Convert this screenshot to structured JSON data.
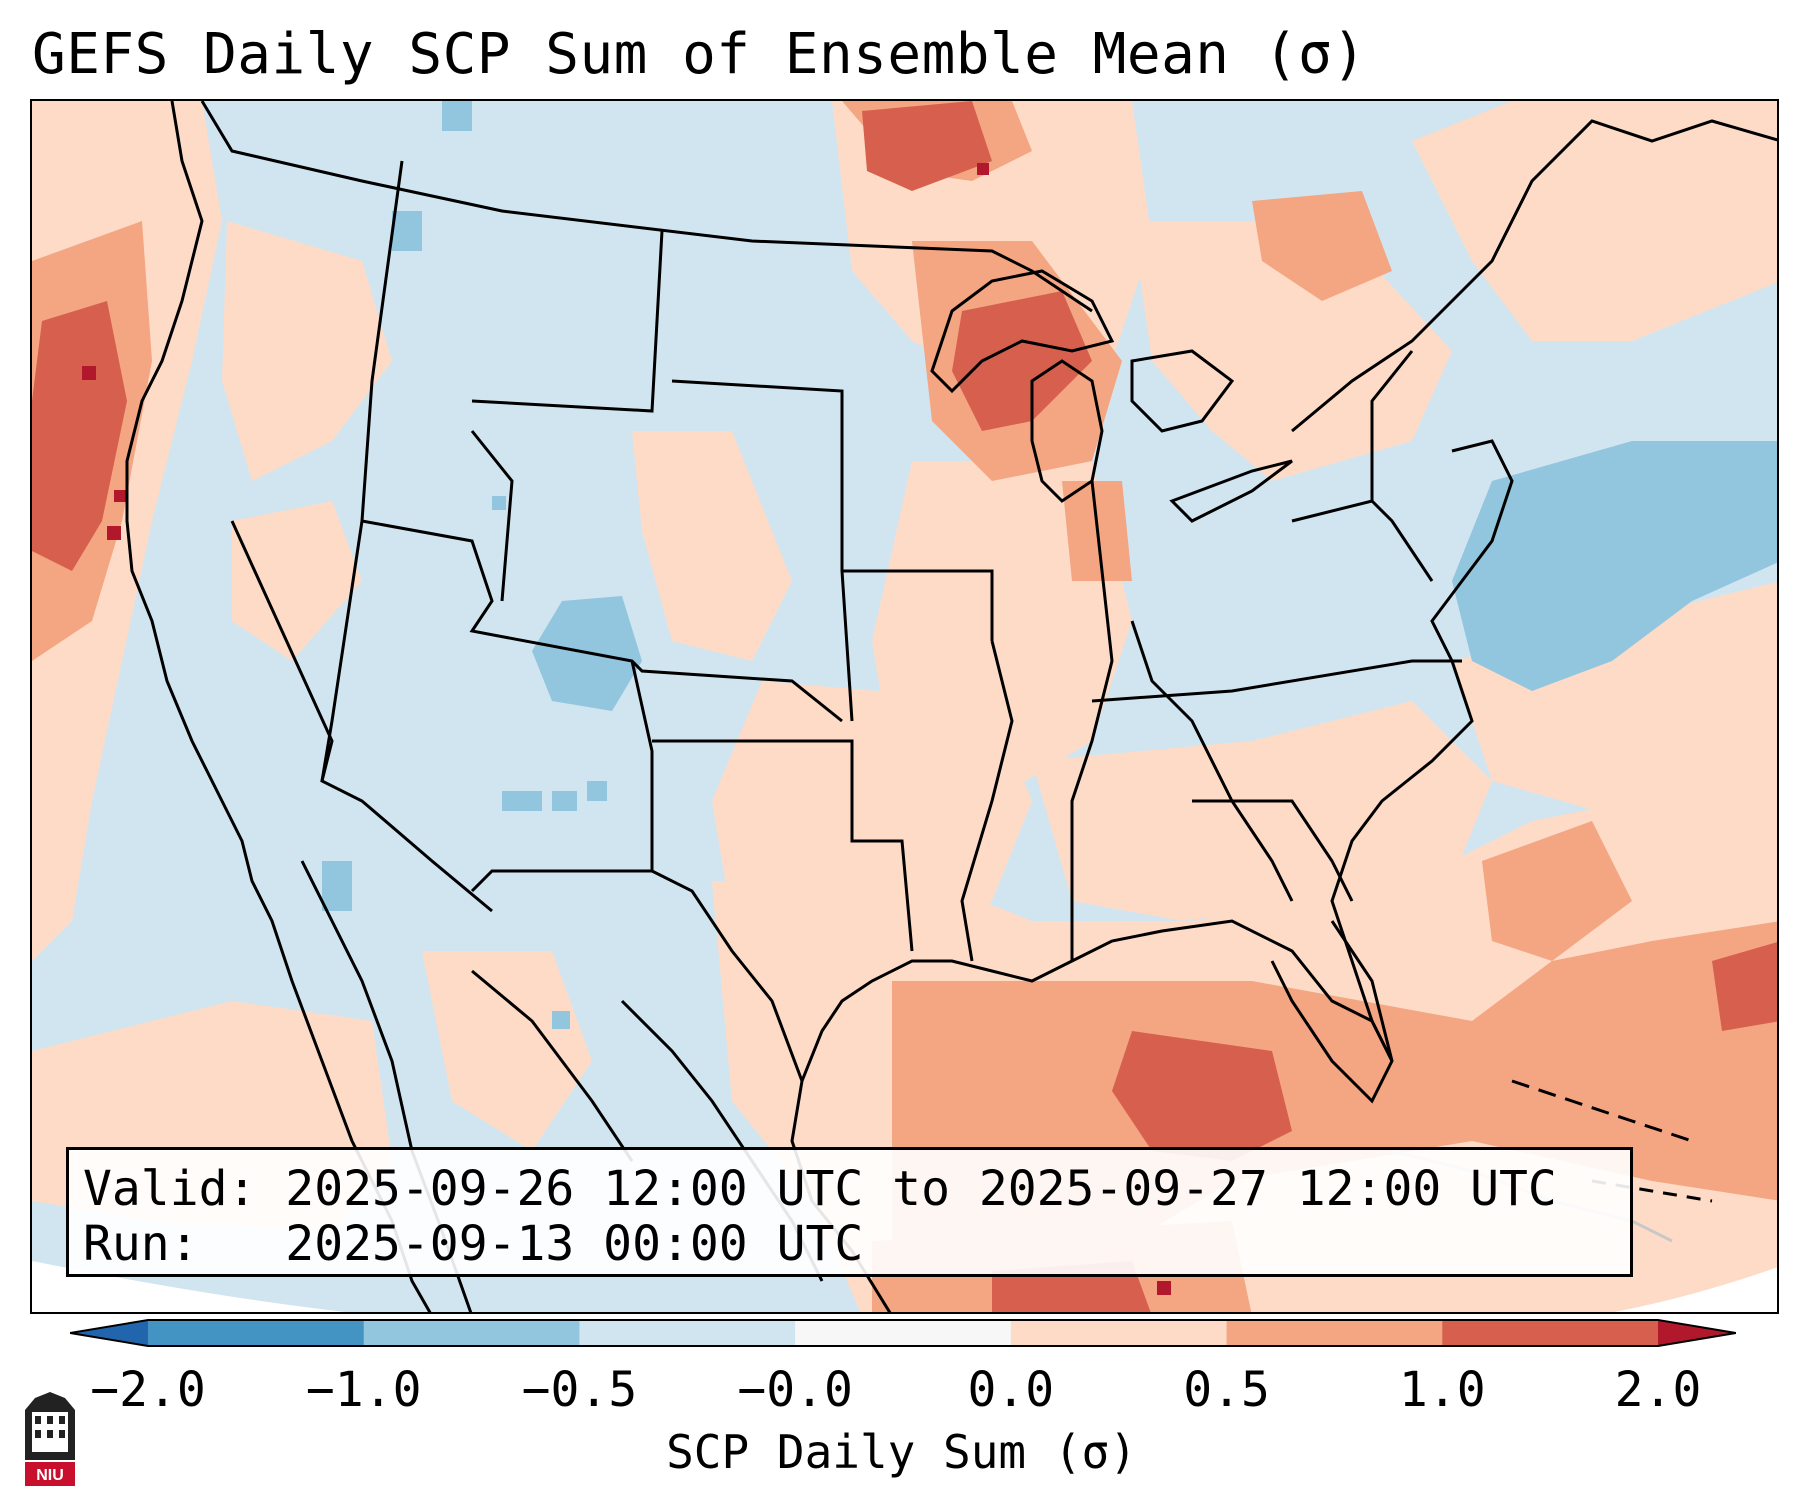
{
  "title": "GEFS Daily SCP Sum of Ensemble Mean (σ)",
  "info": {
    "valid_label": "Valid:",
    "valid_value": "2025-09-26 12:00 UTC to 2025-09-27 12:00 UTC",
    "run_label": "Run:",
    "run_value": "2025-09-13 00:00 UTC"
  },
  "colorbar": {
    "label": "SCP Daily Sum (σ)",
    "ticks": [
      "−2.0",
      "−1.0",
      "−0.5",
      "−0.0",
      "0.0",
      "0.5",
      "1.0",
      "2.0"
    ],
    "bins": [
      {
        "range": "< -2.0",
        "color": "#2166ac"
      },
      {
        "range": "-2.0 to -1.0",
        "color": "#4393c3"
      },
      {
        "range": "-1.0 to -0.5",
        "color": "#92c5de"
      },
      {
        "range": "-0.5 to -0.0",
        "color": "#d1e5f0"
      },
      {
        "range": "-0.0 to 0.0",
        "color": "#f7f7f7"
      },
      {
        "range": "0.0 to 0.5",
        "color": "#fddbc7"
      },
      {
        "range": "0.5 to 1.0",
        "color": "#f4a582"
      },
      {
        "range": "1.0 to 2.0",
        "color": "#d6604d"
      },
      {
        "range": "> 2.0",
        "color": "#b2182b"
      }
    ]
  },
  "logo": {
    "text": "NIU",
    "description": "Northern Illinois University logo"
  }
}
